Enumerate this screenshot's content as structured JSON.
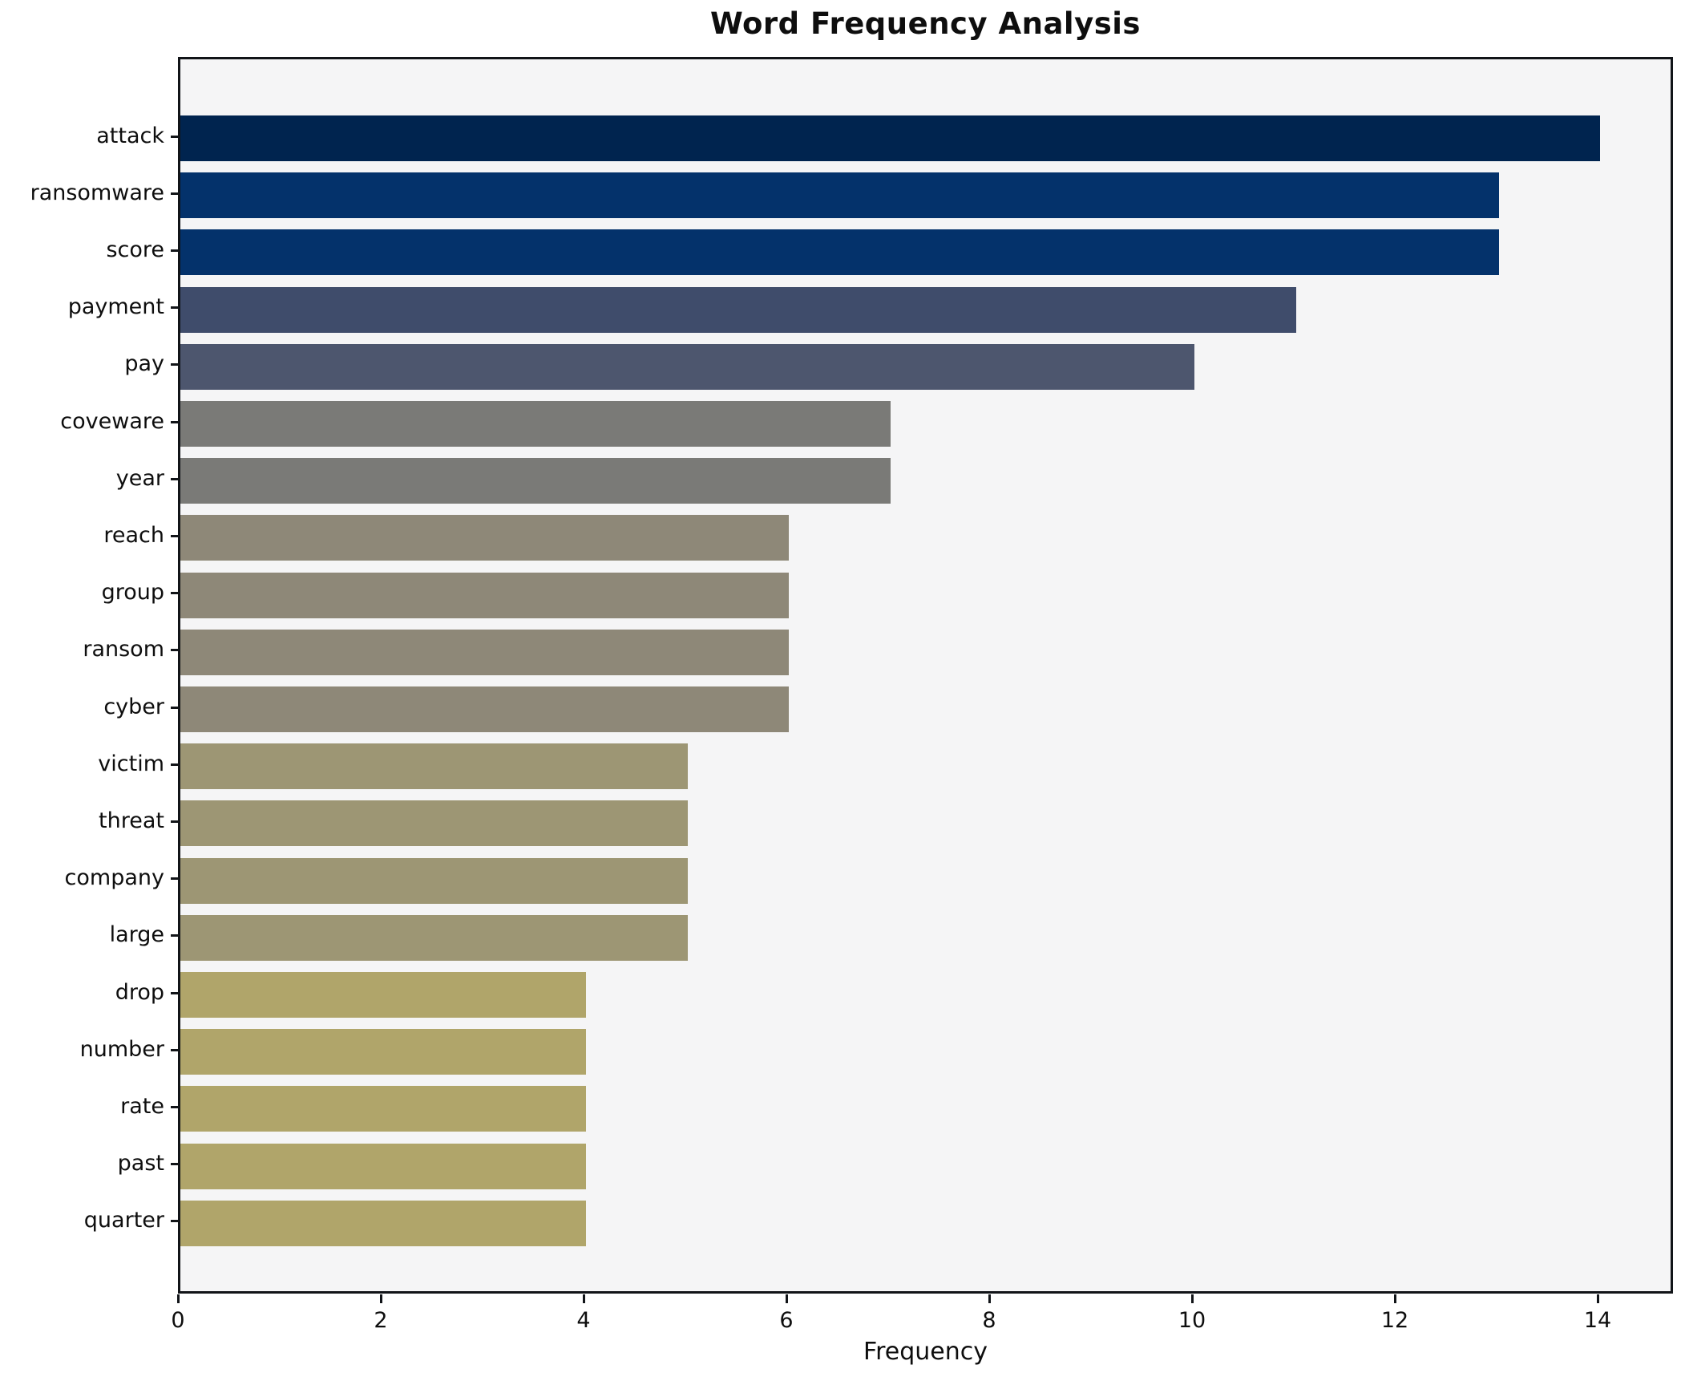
{
  "chart_data": {
    "type": "bar",
    "orientation": "horizontal",
    "title": "Word Frequency Analysis",
    "xlabel": "Frequency",
    "ylabel": "",
    "categories": [
      "attack",
      "ransomware",
      "score",
      "payment",
      "pay",
      "coveware",
      "year",
      "reach",
      "group",
      "ransom",
      "cyber",
      "victim",
      "threat",
      "company",
      "large",
      "drop",
      "number",
      "rate",
      "past",
      "quarter"
    ],
    "values": [
      14,
      13,
      13,
      11,
      10,
      7,
      7,
      6,
      6,
      6,
      6,
      5,
      5,
      5,
      5,
      4,
      4,
      4,
      4,
      4
    ],
    "bar_colors": [
      "#00244f",
      "#04326b",
      "#04326b",
      "#3f4c6b",
      "#4d566e",
      "#7a7a77",
      "#7a7a77",
      "#8e8878",
      "#8e8878",
      "#8e8878",
      "#8e8878",
      "#9d9674",
      "#9d9674",
      "#9d9674",
      "#9d9674",
      "#b0a56a",
      "#b0a56a",
      "#b0a56a",
      "#b0a56a",
      "#b0a56a"
    ],
    "x_ticks": [
      0,
      2,
      4,
      6,
      8,
      10,
      12,
      14
    ],
    "xlim": [
      0,
      14.74
    ],
    "grid": "off",
    "legend": "none",
    "plot_background": "#f5f5f6",
    "figure_background": "#ffffff",
    "spine_color": "#111418",
    "text_color": "#0e0e0e"
  }
}
